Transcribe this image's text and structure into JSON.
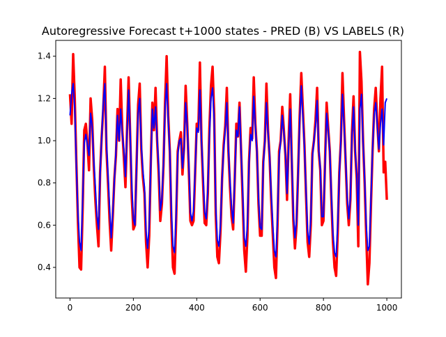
{
  "chart_data": {
    "type": "line",
    "title": "Autoregressive Forecast t+1000 states - PRED (B) VS LABELS (R)",
    "xlabel": "",
    "ylabel": "",
    "xlim": [
      -45,
      1046
    ],
    "ylim": [
      0.255,
      1.475
    ],
    "x_ticks": [
      0,
      200,
      400,
      600,
      800,
      1000
    ],
    "x_tick_labels": [
      "0",
      "200",
      "400",
      "600",
      "800",
      "1000"
    ],
    "y_ticks": [
      0.4,
      0.6,
      0.8,
      1.0,
      1.2,
      1.4
    ],
    "y_tick_labels": [
      "0.4",
      "0.6",
      "0.8",
      "1.0",
      "1.2",
      "1.4"
    ],
    "grid": false,
    "legend": "none",
    "series": [
      {
        "role": "labels",
        "color": "#ff0000",
        "x": [
          0,
          5,
          10,
          15,
          20,
          25,
          30,
          35,
          40,
          45,
          50,
          55,
          60,
          65,
          70,
          75,
          80,
          85,
          90,
          95,
          100,
          105,
          110,
          115,
          120,
          125,
          130,
          135,
          140,
          145,
          150,
          155,
          160,
          165,
          170,
          175,
          180,
          185,
          190,
          195,
          200,
          205,
          210,
          215,
          220,
          225,
          230,
          235,
          240,
          245,
          250,
          255,
          260,
          265,
          270,
          275,
          280,
          285,
          290,
          295,
          300,
          305,
          310,
          315,
          320,
          325,
          330,
          335,
          340,
          345,
          350,
          355,
          360,
          365,
          370,
          375,
          380,
          385,
          390,
          395,
          400,
          405,
          410,
          415,
          420,
          425,
          430,
          435,
          440,
          445,
          450,
          455,
          460,
          465,
          470,
          475,
          480,
          485,
          490,
          495,
          500,
          505,
          510,
          515,
          520,
          525,
          530,
          535,
          540,
          545,
          550,
          555,
          560,
          565,
          570,
          575,
          580,
          585,
          590,
          595,
          600,
          605,
          610,
          615,
          620,
          625,
          630,
          635,
          640,
          645,
          650,
          655,
          660,
          665,
          670,
          675,
          680,
          685,
          690,
          695,
          700,
          705,
          710,
          715,
          720,
          725,
          730,
          735,
          740,
          745,
          750,
          755,
          760,
          765,
          770,
          775,
          780,
          785,
          790,
          795,
          800,
          805,
          810,
          815,
          820,
          825,
          830,
          835,
          840,
          845,
          850,
          855,
          860,
          865,
          870,
          875,
          880,
          885,
          890,
          895,
          900,
          905,
          910,
          915,
          920,
          925,
          930,
          935,
          940,
          945,
          950,
          955,
          960,
          965,
          970,
          975,
          980,
          985,
          990,
          995,
          1000
        ],
        "values": [
          1.22,
          1.08,
          1.41,
          1.2,
          0.9,
          0.62,
          0.4,
          0.39,
          0.68,
          1.05,
          1.08,
          0.99,
          0.86,
          1.2,
          1.1,
          0.88,
          0.72,
          0.6,
          0.5,
          0.85,
          1.02,
          1.15,
          1.35,
          0.96,
          0.8,
          0.62,
          0.48,
          0.64,
          0.82,
          0.93,
          1.15,
          1.0,
          1.29,
          1.05,
          0.92,
          0.78,
          1.05,
          1.3,
          1.02,
          0.73,
          0.58,
          0.6,
          0.88,
          1.17,
          1.27,
          0.96,
          0.83,
          0.75,
          0.52,
          0.4,
          0.55,
          0.9,
          1.18,
          1.05,
          1.25,
          1.0,
          0.84,
          0.62,
          0.7,
          0.88,
          1.18,
          1.4,
          1.12,
          0.95,
          0.62,
          0.4,
          0.37,
          0.62,
          0.95,
          1.0,
          1.04,
          0.84,
          0.97,
          1.26,
          1.08,
          0.86,
          0.62,
          0.6,
          0.62,
          0.85,
          1.08,
          1.05,
          1.37,
          1.0,
          0.8,
          0.61,
          0.6,
          0.75,
          1.06,
          1.26,
          1.35,
          1.13,
          0.65,
          0.45,
          0.42,
          0.57,
          0.82,
          0.98,
          1.07,
          1.25,
          0.95,
          0.78,
          0.64,
          0.58,
          0.82,
          1.08,
          1.02,
          1.18,
          0.95,
          0.72,
          0.48,
          0.38,
          0.55,
          0.9,
          1.06,
          1.01,
          1.3,
          1.08,
          0.95,
          0.7,
          0.55,
          0.55,
          0.9,
          1.0,
          1.27,
          1.05,
          0.92,
          0.72,
          0.56,
          0.4,
          0.35,
          0.6,
          0.95,
          1.0,
          1.16,
          1.05,
          0.93,
          0.72,
          1.0,
          1.22,
          0.9,
          0.62,
          0.49,
          0.6,
          0.85,
          1.12,
          1.32,
          1.15,
          0.98,
          0.74,
          0.52,
          0.45,
          0.6,
          0.94,
          1.0,
          1.1,
          1.25,
          0.95,
          0.86,
          0.6,
          0.62,
          0.9,
          1.18,
          1.06,
          0.95,
          0.72,
          0.52,
          0.4,
          0.36,
          0.56,
          0.85,
          1.0,
          1.32,
          1.1,
          0.9,
          0.7,
          0.6,
          0.72,
          1.04,
          1.21,
          0.95,
          0.82,
          0.5,
          1.42,
          1.28,
          1.0,
          0.8,
          0.55,
          0.32,
          0.42,
          0.7,
          0.95,
          1.15,
          1.25,
          1.08,
          0.95,
          1.2,
          1.35,
          0.85,
          0.9,
          0.72
        ]
      },
      {
        "role": "pred",
        "color": "#0000ff",
        "x": [
          0,
          5,
          10,
          15,
          20,
          25,
          30,
          35,
          40,
          45,
          50,
          55,
          60,
          65,
          70,
          75,
          80,
          85,
          90,
          95,
          100,
          105,
          110,
          115,
          120,
          125,
          130,
          135,
          140,
          145,
          150,
          155,
          160,
          165,
          170,
          175,
          180,
          185,
          190,
          195,
          200,
          205,
          210,
          215,
          220,
          225,
          230,
          235,
          240,
          245,
          250,
          255,
          260,
          265,
          270,
          275,
          280,
          285,
          290,
          295,
          300,
          305,
          310,
          315,
          320,
          325,
          330,
          335,
          340,
          345,
          350,
          355,
          360,
          365,
          370,
          375,
          380,
          385,
          390,
          395,
          400,
          405,
          410,
          415,
          420,
          425,
          430,
          435,
          440,
          445,
          450,
          455,
          460,
          465,
          470,
          475,
          480,
          485,
          490,
          495,
          500,
          505,
          510,
          515,
          520,
          525,
          530,
          535,
          540,
          545,
          550,
          555,
          560,
          565,
          570,
          575,
          580,
          585,
          590,
          595,
          600,
          605,
          610,
          615,
          620,
          625,
          630,
          635,
          640,
          645,
          650,
          655,
          660,
          665,
          670,
          675,
          680,
          685,
          690,
          695,
          700,
          705,
          710,
          715,
          720,
          725,
          730,
          735,
          740,
          745,
          750,
          755,
          760,
          765,
          770,
          775,
          780,
          785,
          790,
          795,
          800,
          805,
          810,
          815,
          820,
          825,
          830,
          835,
          840,
          845,
          850,
          855,
          860,
          865,
          870,
          875,
          880,
          885,
          890,
          895,
          900,
          905,
          910,
          915,
          920,
          925,
          930,
          935,
          940,
          945,
          950,
          955,
          960,
          965,
          970,
          975,
          980,
          985,
          990,
          995,
          1000
        ],
        "values": [
          1.12,
          1.22,
          1.27,
          1.15,
          0.88,
          0.66,
          0.52,
          0.48,
          0.72,
          0.99,
          1.03,
          0.98,
          0.93,
          1.13,
          1.07,
          0.91,
          0.78,
          0.64,
          0.58,
          0.84,
          1.02,
          1.18,
          1.27,
          0.99,
          0.84,
          0.68,
          0.54,
          0.66,
          0.81,
          0.95,
          1.12,
          1.0,
          1.15,
          1.03,
          0.96,
          0.83,
          1.04,
          1.24,
          1.03,
          0.79,
          0.63,
          0.6,
          0.87,
          1.13,
          1.2,
          0.98,
          0.86,
          0.78,
          0.57,
          0.49,
          0.6,
          0.88,
          1.15,
          1.06,
          1.16,
          1.01,
          0.88,
          0.67,
          0.72,
          0.89,
          1.15,
          1.27,
          1.1,
          0.95,
          0.67,
          0.5,
          0.47,
          0.65,
          0.93,
          1.0,
          1.01,
          0.87,
          0.96,
          1.18,
          1.07,
          0.89,
          0.66,
          0.62,
          0.67,
          0.86,
          1.06,
          1.04,
          1.24,
          1.0,
          0.84,
          0.66,
          0.63,
          0.77,
          1.02,
          1.2,
          1.25,
          1.1,
          0.69,
          0.53,
          0.5,
          0.6,
          0.82,
          0.96,
          1.05,
          1.18,
          0.96,
          0.81,
          0.68,
          0.61,
          0.82,
          1.05,
          1.02,
          1.16,
          0.95,
          0.76,
          0.54,
          0.5,
          0.6,
          0.89,
          1.03,
          1.0,
          1.21,
          1.07,
          0.95,
          0.73,
          0.59,
          0.58,
          0.88,
          1.0,
          1.18,
          1.04,
          0.93,
          0.75,
          0.6,
          0.48,
          0.45,
          0.63,
          0.92,
          1.0,
          1.12,
          1.04,
          0.94,
          0.75,
          0.97,
          1.15,
          0.91,
          0.66,
          0.54,
          0.62,
          0.84,
          1.1,
          1.26,
          1.12,
          0.97,
          0.76,
          0.57,
          0.51,
          0.63,
          0.92,
          1.0,
          1.07,
          1.19,
          0.96,
          0.87,
          0.64,
          0.64,
          0.88,
          1.13,
          1.05,
          0.95,
          0.74,
          0.56,
          0.47,
          0.45,
          0.6,
          0.84,
          1.0,
          1.22,
          1.08,
          0.91,
          0.73,
          0.63,
          0.73,
          1.02,
          1.16,
          0.96,
          0.84,
          0.6,
          1.15,
          1.22,
          1.0,
          0.82,
          0.6,
          0.48,
          0.5,
          0.73,
          0.96,
          1.12,
          1.18,
          1.07,
          0.96,
          1.08,
          1.15,
          0.98,
          1.18,
          1.2
        ]
      }
    ]
  }
}
